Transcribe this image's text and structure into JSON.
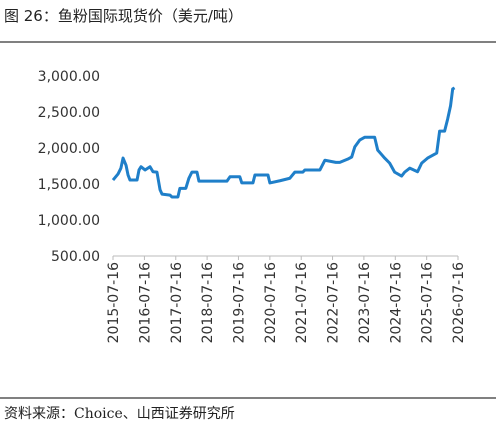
{
  "chart_data": {
    "type": "line",
    "title": "图 26：鱼粉国际现货价（美元/吨）",
    "source": "资料来源：Choice、山西证券研究所",
    "x": [
      "2015-07-16",
      "2015-09-13",
      "2015-10-16",
      "2015-11-10",
      "2015-12-15",
      "2016-01-07",
      "2016-01-30",
      "2016-04-21",
      "2016-05-14",
      "2016-06-06",
      "2016-07-23",
      "2016-09-19",
      "2016-10-24",
      "2016-12-09",
      "2017-01-14",
      "2017-02-06",
      "2017-05-10",
      "2017-06-02",
      "2017-08-10",
      "2017-09-02",
      "2017-11-10",
      "2017-12-16",
      "2018-01-20",
      "2018-03-20",
      "2018-04-12",
      "2019-03-04",
      "2019-04-08",
      "2019-08-01",
      "2019-08-24",
      "2020-01-01",
      "2020-01-24",
      "2020-06-24",
      "2020-07-16",
      "2020-11-10",
      "2021-03-06",
      "2021-05-03",
      "2021-08-04",
      "2021-08-28",
      "2022-02-19",
      "2022-04-18",
      "2022-08-23",
      "2022-10-08",
      "2023-01-08",
      "2023-02-24",
      "2023-04-01",
      "2023-05-28",
      "2023-07-27",
      "2023-11-18",
      "2023-12-24",
      "2024-03-14",
      "2024-05-11",
      "2024-07-08",
      "2024-09-27",
      "2024-11-02",
      "2024-12-31",
      "2025-04-01",
      "2025-05-19",
      "2025-07-27",
      "2025-11-10",
      "2025-12-14",
      "2026-02-10",
      "2026-03-17",
      "2026-04-20",
      "2026-05-15",
      "2026-06-06"
    ],
    "series": [
      {
        "name": "鱼粉国际现货价",
        "color": "#1f7fc9",
        "values": [
          1555,
          1640,
          1720,
          1860,
          1760,
          1625,
          1555,
          1555,
          1695,
          1740,
          1695,
          1740,
          1670,
          1665,
          1420,
          1360,
          1345,
          1320,
          1320,
          1440,
          1440,
          1580,
          1665,
          1665,
          1540,
          1540,
          1600,
          1600,
          1515,
          1515,
          1625,
          1625,
          1515,
          1545,
          1580,
          1665,
          1665,
          1695,
          1695,
          1830,
          1800,
          1800,
          1845,
          1875,
          2015,
          2110,
          2150,
          2150,
          1970,
          1860,
          1790,
          1665,
          1610,
          1665,
          1720,
          1670,
          1790,
          1860,
          1930,
          2235,
          2235,
          2400,
          2585,
          2820,
          2835
        ]
      }
    ],
    "xlim": [
      "2015-07-16",
      "2026-07-16"
    ],
    "xticks": [
      "2015-07-16",
      "2016-07-16",
      "2017-07-16",
      "2018-07-16",
      "2019-07-16",
      "2020-07-16",
      "2021-07-16",
      "2022-07-16",
      "2023-07-16",
      "2024-07-16",
      "2025-07-16",
      "2026-07-16"
    ],
    "ylim": [
      500,
      3000
    ],
    "yticks": [
      {
        "value": 500,
        "label": "500.00"
      },
      {
        "value": 1000,
        "label": "1,000.00"
      },
      {
        "value": 1500,
        "label": "1,500.00"
      },
      {
        "value": 2000,
        "label": "2,000.00"
      },
      {
        "value": 2500,
        "label": "2,500.00"
      },
      {
        "value": 3000,
        "label": "3,000.00"
      }
    ],
    "grid": false
  }
}
